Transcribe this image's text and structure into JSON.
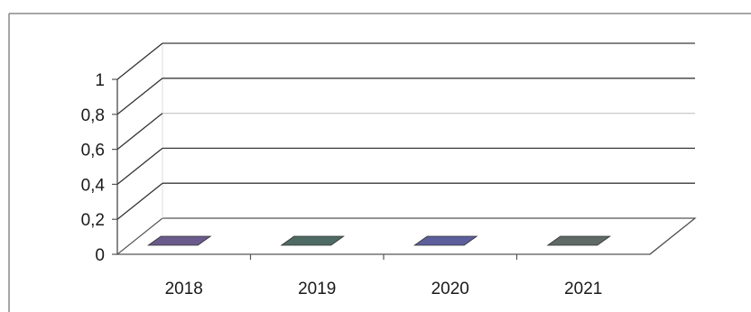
{
  "chart_data": {
    "type": "bar",
    "categories": [
      "2018",
      "2019",
      "2020",
      "2021"
    ],
    "series": [
      {
        "values": [
          0,
          0,
          0,
          0
        ]
      }
    ],
    "bar_colors": [
      "#6b5b8c",
      "#4d6b63",
      "#5c5f9c",
      "#5f6a66"
    ],
    "ylim": [
      0,
      1
    ],
    "y_ticks": [
      "0",
      "0,2",
      "0,4",
      "0,6",
      "0,8",
      "1"
    ],
    "grid": true,
    "style": "3d",
    "title": "",
    "xlabel": "",
    "ylabel": ""
  }
}
